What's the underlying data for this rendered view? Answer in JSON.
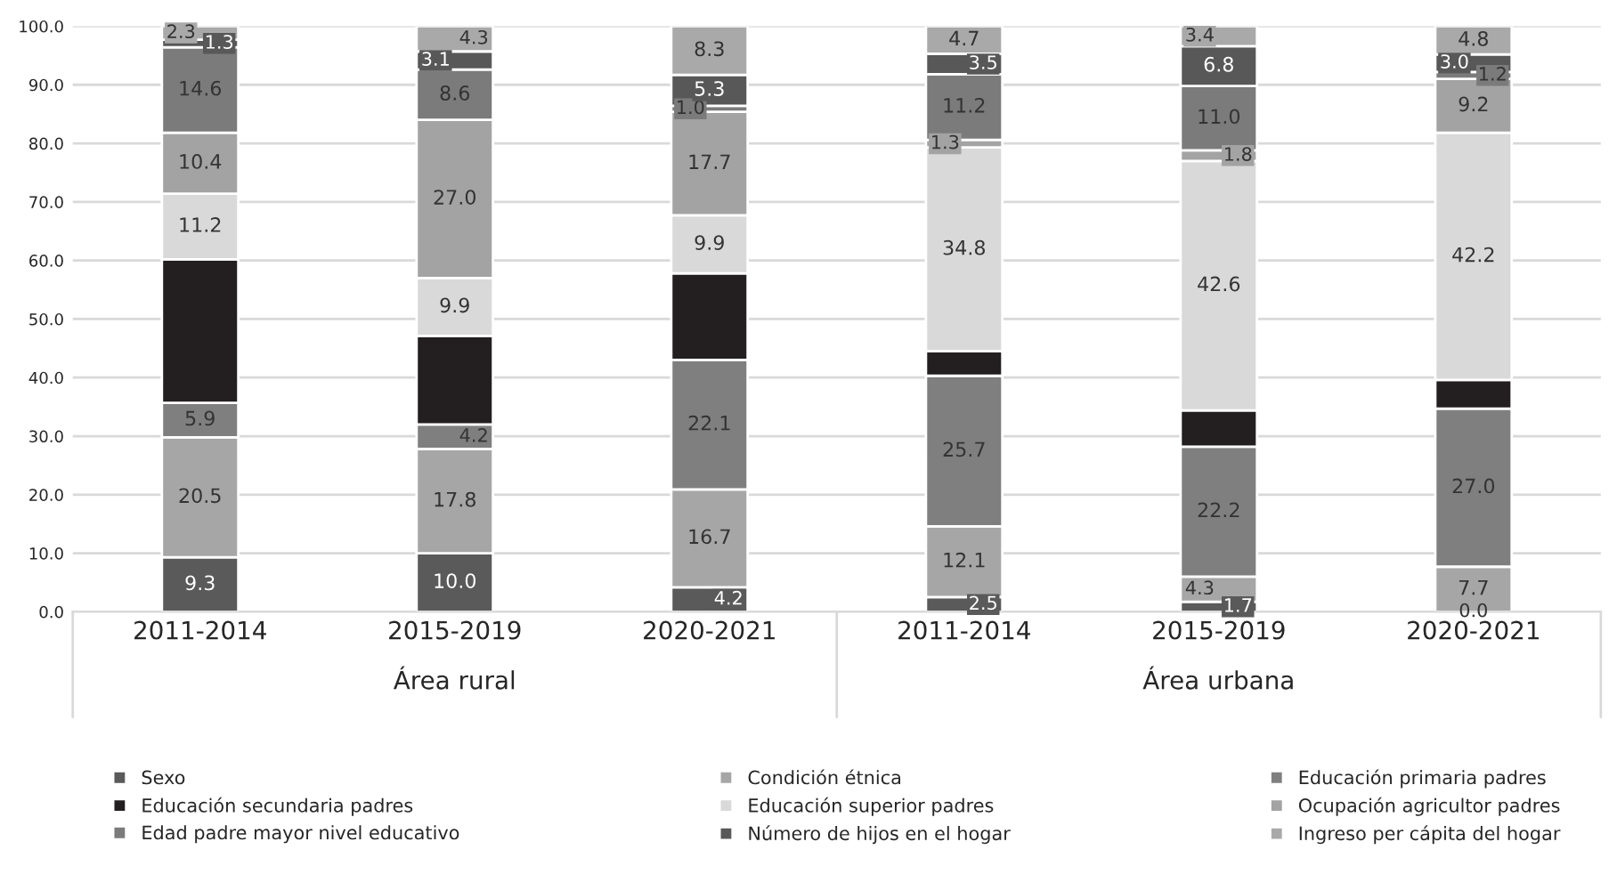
{
  "chart_data": {
    "type": "bar",
    "stacked": true,
    "categories": [
      "2011-2014",
      "2015-2019",
      "2020-2021",
      "2011-2014",
      "2015-2019",
      "2020-2021"
    ],
    "annotations": [
      "Área rural",
      "Área urbana"
    ],
    "ylim": [
      0,
      100
    ],
    "yticks": [
      {
        "value": 0,
        "label": "0.0"
      },
      {
        "value": 10,
        "label": "10.0"
      },
      {
        "value": 20,
        "label": "20.0"
      },
      {
        "value": 30,
        "label": "30.0"
      },
      {
        "value": 40,
        "label": "40.0"
      },
      {
        "value": 50,
        "label": "50.0"
      },
      {
        "value": 60,
        "label": "60.0"
      },
      {
        "value": 70,
        "label": "70.0"
      },
      {
        "value": 80,
        "label": "80.0"
      },
      {
        "value": 90,
        "label": "90.0"
      },
      {
        "value": 100,
        "label": "100.0"
      }
    ],
    "grid": "y",
    "legend": "bottom",
    "series": [
      {
        "name": "Sexo",
        "color": "#5a5a5a",
        "values": [
          9.3,
          10.0,
          4.2,
          2.5,
          1.7,
          0.0
        ],
        "value_labels": [
          "9.3",
          "10.0",
          "4.2",
          "2.5",
          "1.7",
          "0.0"
        ]
      },
      {
        "name": "Condición étnica",
        "color": "#a6a6a6",
        "values": [
          20.5,
          17.8,
          16.7,
          12.1,
          4.3,
          7.7
        ],
        "value_labels": [
          "20.5",
          "17.8",
          "16.7",
          "12.1",
          "4.3",
          "7.7"
        ]
      },
      {
        "name": "Educación primaria padres",
        "color": "#7f7f7f",
        "values": [
          5.9,
          4.2,
          22.1,
          25.7,
          22.2,
          27.0
        ],
        "value_labels": [
          "5.9",
          "4.2",
          "22.1",
          "25.7",
          "22.2",
          "27.0"
        ]
      },
      {
        "name": "Educación secundaria padres",
        "color": "#231f20",
        "values": [
          24.5,
          15.1,
          14.8,
          4.2,
          6.2,
          4.9
        ],
        "value_labels": [
          null,
          null,
          null,
          null,
          null,
          null
        ]
      },
      {
        "name": "Educación superior padres",
        "color": "#d9d9d9",
        "values": [
          11.2,
          9.9,
          9.9,
          34.8,
          42.6,
          42.2
        ],
        "value_labels": [
          "11.2",
          "9.9",
          "9.9",
          "34.8",
          "42.6",
          "42.2"
        ]
      },
      {
        "name": "Ocupación agricultor padres",
        "color": "#a3a3a3",
        "values": [
          10.4,
          27.0,
          17.7,
          1.3,
          1.8,
          9.2
        ],
        "value_labels": [
          "10.4",
          "27.0",
          "17.7",
          "1.3",
          "1.8",
          "9.2"
        ]
      },
      {
        "name": "Edad padre mayor nivel educativo",
        "color": "#7b7b7b",
        "values": [
          14.6,
          8.6,
          1.0,
          11.2,
          11.0,
          1.2
        ],
        "value_labels": [
          "14.6",
          "8.6",
          "1.0",
          "11.2",
          "11.0",
          "1.2"
        ]
      },
      {
        "name": "Número de hijos en el hogar",
        "color": "#585858",
        "values": [
          1.3,
          3.1,
          5.3,
          3.5,
          6.8,
          3.0
        ],
        "value_labels": [
          "1.3",
          "3.1",
          "5.3",
          "3.5",
          "6.8",
          "3.0"
        ]
      },
      {
        "name": "Ingreso per cápita del hogar",
        "color": "#a9a9a9",
        "values": [
          2.3,
          4.3,
          8.3,
          4.7,
          3.4,
          4.8
        ],
        "value_labels": [
          "2.3",
          "4.3",
          "8.3",
          "4.7",
          "3.4",
          "4.8"
        ]
      }
    ]
  }
}
